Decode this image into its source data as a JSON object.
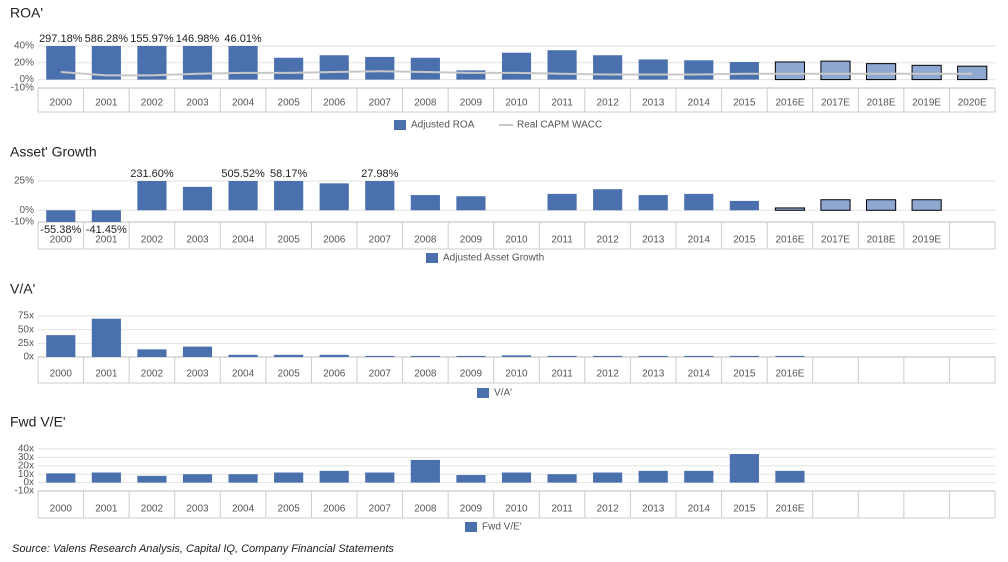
{
  "chart_data": [
    {
      "type": "bar",
      "title": "ROA'",
      "categories": [
        "2000",
        "2001",
        "2002",
        "2003",
        "2004",
        "2005",
        "2006",
        "2007",
        "2008",
        "2009",
        "2010",
        "2011",
        "2012",
        "2013",
        "2014",
        "2015",
        "2016E",
        "2017E",
        "2018E",
        "2019E",
        "2020E"
      ],
      "series": [
        {
          "name": "Adjusted ROA",
          "type": "bar",
          "color": "#4a70ad",
          "values": [
            297.18,
            586.28,
            155.97,
            146.98,
            46.01,
            26,
            29,
            27,
            26,
            11,
            32,
            35,
            29,
            24,
            23,
            21,
            21,
            22,
            19,
            17,
            16
          ],
          "value_labels": [
            "297.18%",
            "586.28%",
            "155.97%",
            "146.98%",
            "46.01%",
            null,
            null,
            null,
            null,
            null,
            null,
            null,
            null,
            null,
            null,
            null,
            null,
            null,
            null,
            null,
            null
          ],
          "colors": [
            "#4a70ad",
            "#4a70ad",
            "#4a70ad",
            "#4a70ad",
            "#4a70ad",
            "#4a70ad",
            "#4a70ad",
            "#4a70ad",
            "#4a70ad",
            "#4a70ad",
            "#4a70ad",
            "#4a70ad",
            "#4a70ad",
            "#4a70ad",
            "#4a70ad",
            "#4a70ad",
            "#8ea8d2",
            "#8ea8d2",
            "#8ea8d2",
            "#8ea8d2",
            "#8ea8d2"
          ],
          "edgecolors": [
            null,
            null,
            null,
            null,
            null,
            null,
            null,
            null,
            null,
            null,
            null,
            null,
            null,
            null,
            null,
            null,
            "#000000",
            "#000000",
            "#000000",
            "#000000",
            "#000000"
          ]
        },
        {
          "name": "Real CAPM WACC",
          "type": "line",
          "color": "#c8c8c8",
          "values": [
            9,
            5,
            5,
            7,
            8,
            8,
            9,
            10,
            9,
            8,
            8,
            7,
            6,
            6,
            6,
            7,
            7,
            7,
            7,
            7,
            7
          ]
        }
      ],
      "ylim": [
        -10,
        40
      ],
      "yticks": [
        {
          "value": 40,
          "label": "40%"
        },
        {
          "value": 20,
          "label": "20%"
        },
        {
          "value": 0,
          "label": "0%"
        },
        {
          "value": -10,
          "label": "-10%"
        }
      ],
      "grid": true,
      "legend": "bottom"
    },
    {
      "type": "bar",
      "title": "Asset' Growth",
      "categories": [
        "2000",
        "2001",
        "2002",
        "2003",
        "2004",
        "2005",
        "2006",
        "2007",
        "2008",
        "2009",
        "2010",
        "2011",
        "2012",
        "2013",
        "2014",
        "2015",
        "2016E",
        "2017E",
        "2018E",
        "2019E",
        null
      ],
      "series": [
        {
          "name": "Adjusted Asset Growth",
          "type": "bar",
          "color": "#4a70ad",
          "values": [
            -55.38,
            -41.45,
            231.6,
            20,
            505.52,
            58.17,
            23,
            27.98,
            13,
            12,
            null,
            14,
            18,
            13,
            14,
            8,
            2,
            9,
            9,
            9,
            null
          ],
          "value_labels": [
            "-55.38%",
            "-41.45%",
            "231.60%",
            null,
            "505.52%",
            "58.17%",
            null,
            "27.98%",
            null,
            null,
            null,
            null,
            null,
            null,
            null,
            null,
            null,
            null,
            null,
            null,
            null
          ],
          "colors": [
            "#4a70ad",
            "#4a70ad",
            "#4a70ad",
            "#4a70ad",
            "#4a70ad",
            "#4a70ad",
            "#4a70ad",
            "#4a70ad",
            "#4a70ad",
            "#4a70ad",
            "#4a70ad",
            "#4a70ad",
            "#4a70ad",
            "#4a70ad",
            "#4a70ad",
            "#4a70ad",
            "#8ea8d2",
            "#8ea8d2",
            "#8ea8d2",
            "#8ea8d2",
            "#8ea8d2"
          ],
          "edgecolors": [
            null,
            null,
            null,
            null,
            null,
            null,
            null,
            null,
            null,
            null,
            null,
            null,
            null,
            null,
            null,
            null,
            "#000000",
            "#000000",
            "#000000",
            "#000000",
            "#000000"
          ]
        }
      ],
      "ylim": [
        -10,
        25
      ],
      "yticks": [
        {
          "value": 25,
          "label": "25%"
        },
        {
          "value": 0,
          "label": "0%"
        },
        {
          "value": -10,
          "label": "-10%"
        }
      ],
      "grid": true,
      "legend": "bottom"
    },
    {
      "type": "bar",
      "title": "V/A'",
      "categories": [
        "2000",
        "2001",
        "2002",
        "2003",
        "2004",
        "2005",
        "2006",
        "2007",
        "2008",
        "2009",
        "2010",
        "2011",
        "2012",
        "2013",
        "2014",
        "2015",
        "2016E",
        null,
        null,
        null,
        null
      ],
      "series": [
        {
          "name": "V/A'",
          "type": "bar",
          "color": "#4a70ad",
          "values": [
            40,
            70,
            14,
            19,
            4,
            4,
            4,
            2,
            2,
            2,
            3,
            2,
            2,
            2,
            2,
            2,
            2,
            null,
            null,
            null,
            null
          ]
        }
      ],
      "ylim": [
        0,
        75
      ],
      "yticks": [
        {
          "value": 75,
          "label": "75x"
        },
        {
          "value": 50,
          "label": "50x"
        },
        {
          "value": 25,
          "label": "25x"
        },
        {
          "value": 0,
          "label": "0x"
        }
      ],
      "grid": true,
      "legend": "bottom"
    },
    {
      "type": "bar",
      "title": "Fwd V/E'",
      "categories": [
        "2000",
        "2001",
        "2002",
        "2003",
        "2004",
        "2005",
        "2006",
        "2007",
        "2008",
        "2009",
        "2010",
        "2011",
        "2012",
        "2013",
        "2014",
        "2015",
        "2016E",
        null,
        null,
        null,
        null
      ],
      "series": [
        {
          "name": "Fwd V/E'",
          "type": "bar",
          "color": "#4a70ad",
          "values": [
            11,
            12,
            8,
            10,
            10,
            12,
            14,
            12,
            27,
            9,
            12,
            10,
            12,
            14,
            14,
            34,
            14,
            null,
            null,
            null,
            null
          ]
        }
      ],
      "ylim": [
        -10,
        40
      ],
      "yticks": [
        {
          "value": 40,
          "label": "40x"
        },
        {
          "value": 30,
          "label": "30x"
        },
        {
          "value": 20,
          "label": "20x"
        },
        {
          "value": 10,
          "label": "10x"
        },
        {
          "value": 0,
          "label": "0x"
        },
        {
          "value": -10,
          "label": "-10x"
        }
      ],
      "grid": true,
      "legend": "bottom"
    }
  ],
  "source": "Source: Valens Research Analysis, Capital IQ, Company Financial Statements"
}
